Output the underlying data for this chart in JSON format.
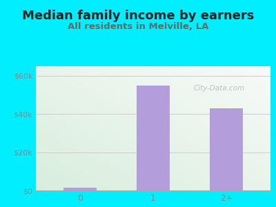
{
  "title": "Median family income by earners",
  "subtitle": "All residents in Melville, LA",
  "categories": [
    "0",
    "1",
    "2+"
  ],
  "values": [
    1500,
    55000,
    43000
  ],
  "bar_color": "#b39ddb",
  "background_color": "#00eeff",
  "plot_bg_color_green": "#d8eedd",
  "plot_bg_color_white": "#f8faf8",
  "title_fontsize": 13,
  "subtitle_fontsize": 9.5,
  "yticks": [
    0,
    20000,
    40000,
    60000
  ],
  "ytick_labels": [
    "$0",
    "$20k",
    "$40k",
    "$60k"
  ],
  "ylim": [
    0,
    65000
  ],
  "tick_color": "#888888",
  "title_color": "#222222",
  "subtitle_color": "#666666",
  "watermark": "City-Data.com",
  "grid_color": "#cccccc"
}
